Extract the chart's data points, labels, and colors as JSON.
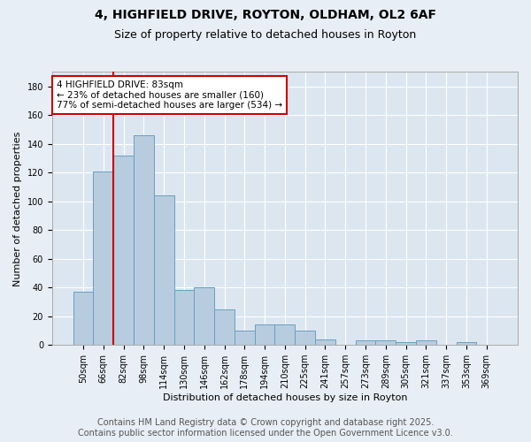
{
  "title_line1": "4, HIGHFIELD DRIVE, ROYTON, OLDHAM, OL2 6AF",
  "title_line2": "Size of property relative to detached houses in Royton",
  "xlabel": "Distribution of detached houses by size in Royton",
  "ylabel": "Number of detached properties",
  "categories": [
    "50sqm",
    "66sqm",
    "82sqm",
    "98sqm",
    "114sqm",
    "130sqm",
    "146sqm",
    "162sqm",
    "178sqm",
    "194sqm",
    "210sqm",
    "225sqm",
    "241sqm",
    "257sqm",
    "273sqm",
    "289sqm",
    "305sqm",
    "321sqm",
    "337sqm",
    "353sqm",
    "369sqm"
  ],
  "values": [
    37,
    121,
    132,
    146,
    104,
    38,
    40,
    25,
    10,
    14,
    14,
    10,
    4,
    0,
    3,
    3,
    2,
    3,
    0,
    2,
    0
  ],
  "bar_color": "#b8ccdf",
  "bar_edge_color": "#6a9fc0",
  "vline_color": "#cc0000",
  "annotation_text": "4 HIGHFIELD DRIVE: 83sqm\n← 23% of detached houses are smaller (160)\n77% of semi-detached houses are larger (534) →",
  "annotation_box_color": "#ffffff",
  "annotation_box_edge": "#cc0000",
  "ylim": [
    0,
    190
  ],
  "yticks": [
    0,
    20,
    40,
    60,
    80,
    100,
    120,
    140,
    160,
    180
  ],
  "background_color": "#e8eef5",
  "plot_bg_color": "#dce6f0",
  "grid_color": "#ffffff",
  "footer_line1": "Contains HM Land Registry data © Crown copyright and database right 2025.",
  "footer_line2": "Contains public sector information licensed under the Open Government Licence v3.0.",
  "title_fontsize": 10,
  "subtitle_fontsize": 9,
  "axis_label_fontsize": 8,
  "tick_fontsize": 7,
  "footer_fontsize": 7,
  "annotation_fontsize": 7.5
}
